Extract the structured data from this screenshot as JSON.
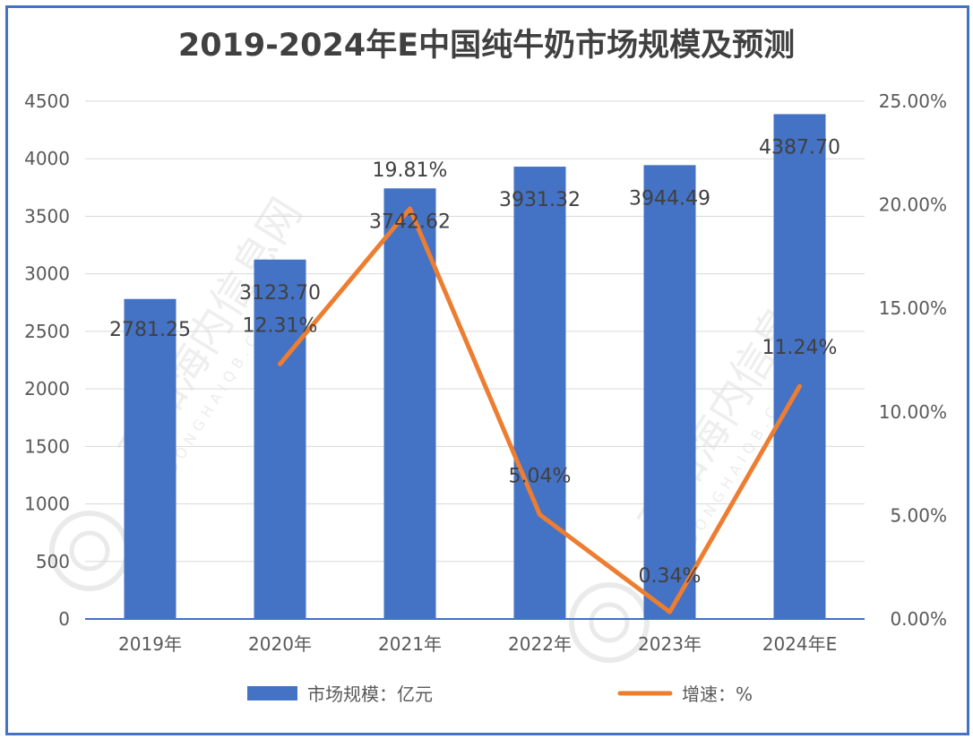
{
  "chart_data": {
    "type": "bar+line",
    "title": "2019-2024年E中国纯牛奶市场规模及预测",
    "categories": [
      "2019年",
      "2020年",
      "2021年",
      "2022年",
      "2023年",
      "2024年E"
    ],
    "series": [
      {
        "name": "市场规模：亿元",
        "type": "bar",
        "axis": "left",
        "color": "#4472c4",
        "values": [
          2781.25,
          3123.7,
          3742.62,
          3931.32,
          3944.49,
          4387.7
        ],
        "labels": [
          "2781.25",
          "3123.70",
          "3742.62",
          "3931.32",
          "3944.49",
          "4387.70"
        ]
      },
      {
        "name": "增速：%",
        "type": "line",
        "axis": "right",
        "color": "#ed7d31",
        "values": [
          null,
          12.31,
          19.81,
          5.04,
          0.34,
          11.24
        ],
        "labels": [
          "",
          "12.31%",
          "19.81%",
          "5.04%",
          "0.34%",
          "11.24%"
        ]
      }
    ],
    "y_left": {
      "min": 0,
      "max": 4500,
      "ticks": [
        "0",
        "500",
        "1000",
        "1500",
        "2000",
        "2500",
        "3000",
        "3500",
        "4000",
        "4500"
      ]
    },
    "y_right": {
      "min": 0,
      "max": 25,
      "ticks": [
        "0.00%",
        "5.00%",
        "10.00%",
        "15.00%",
        "20.00%",
        "25.00%"
      ]
    },
    "grid": true,
    "legend_position": "bottom"
  },
  "watermark": {
    "text": "观知海内信息网",
    "subtext": "DONGHAIQB.COM"
  }
}
